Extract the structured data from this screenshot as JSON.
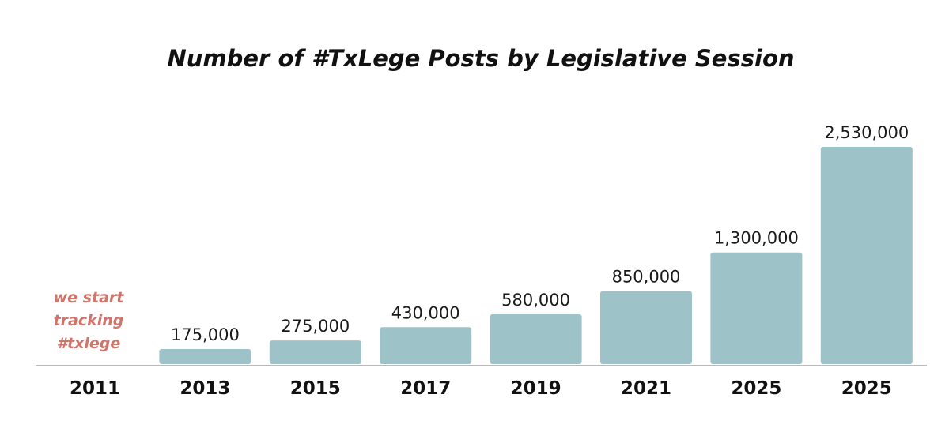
{
  "chart_data": {
    "type": "bar",
    "title": "Number of #TxLege Posts by Legislative Session",
    "xlabel": "",
    "ylabel": "",
    "categories": [
      "2011",
      "2013",
      "2015",
      "2017",
      "2019",
      "2021",
      "2025",
      "2025"
    ],
    "values": [
      null,
      175000,
      275000,
      430000,
      580000,
      850000,
      1300000,
      2530000
    ],
    "value_labels": [
      "",
      "175,000",
      "275,000",
      "430,000",
      "580,000",
      "850,000",
      "1,300,000",
      "2,530,000"
    ],
    "ylim": [
      0,
      2600000
    ],
    "grid": false,
    "legend": "none",
    "annotations": [
      {
        "category": "2011",
        "lines": [
          "we start",
          "tracking",
          "#txlege"
        ]
      }
    ],
    "colors": {
      "bar": "#9dc2c8",
      "baseline": "#b9b9b9",
      "annotation": "#d0756c",
      "text": "#111111"
    }
  }
}
